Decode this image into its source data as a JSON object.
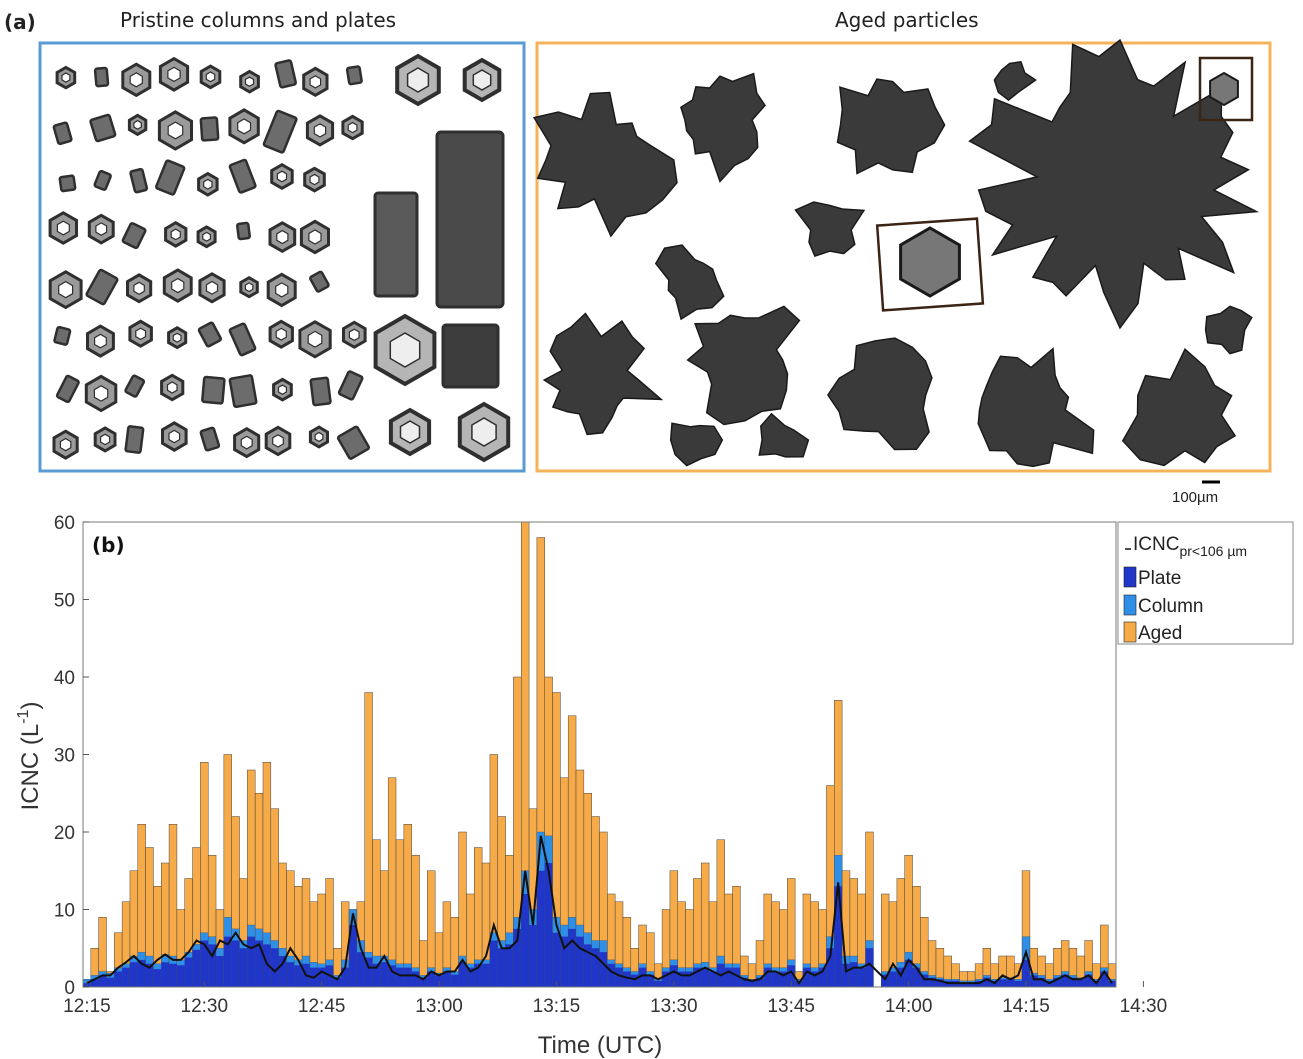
{
  "panel_a": {
    "label": "(a)",
    "pristine_title": "Pristine columns and plates",
    "aged_title": "Aged particles",
    "scale_bar_label": "100µm",
    "colors": {
      "pristine_frame": "#5b9bd5",
      "aged_frame": "#f4b35b",
      "highlight_frame": "#3c2415",
      "particle": "#2f2f2f"
    }
  },
  "chart_data": {
    "type": "bar",
    "stacked": true,
    "panel_label": "(b)",
    "xlabel": "Time (UTC)",
    "ylabel": "ICNC (L",
    "ylabel_superscript": "-1",
    "ylabel_close": ")",
    "ylim": [
      0,
      60
    ],
    "yticks": [
      0,
      10,
      20,
      30,
      40,
      50,
      60
    ],
    "xticks": [
      "12:15",
      "12:30",
      "12:45",
      "13:00",
      "13:15",
      "13:30",
      "13:45",
      "14:00",
      "14:15",
      "14:30"
    ],
    "x_start_minutes": 12.25,
    "x_end_minutes": 14.6,
    "bin_minutes": 1,
    "grid": false,
    "legend_position": "outside-top-right",
    "legend": {
      "line_label": "ICNC",
      "line_label_subscript": "pr<106 µm",
      "plate_label": "Plate",
      "column_label": "Column",
      "aged_label": "Aged"
    },
    "colors": {
      "Plate": "#1f36c8",
      "Column": "#2f8fe6",
      "Aged": "#f7ab48",
      "line": "#111111"
    },
    "total": [
      1,
      5,
      9,
      2,
      7,
      11,
      15,
      21,
      18,
      13,
      16,
      21,
      10,
      14,
      18,
      29,
      17,
      10,
      30,
      22,
      14,
      28,
      25,
      29,
      23,
      16,
      15,
      13,
      14,
      11,
      12,
      14,
      5,
      11,
      10,
      11,
      38,
      19,
      15,
      27,
      19,
      21,
      17,
      6,
      15,
      7,
      11,
      9,
      20,
      12,
      18,
      16,
      30,
      22,
      17,
      40,
      60,
      23,
      58,
      40,
      38,
      27,
      35,
      28,
      25,
      22,
      20,
      12,
      11,
      9,
      5,
      8,
      7,
      3,
      10,
      15,
      11,
      10,
      14,
      16,
      11,
      19,
      12,
      13,
      4,
      3,
      6,
      12,
      11,
      10,
      14,
      2,
      12,
      11,
      10,
      26,
      37,
      15,
      14,
      12,
      20,
      null,
      12,
      11,
      14,
      17,
      13,
      9,
      6,
      5,
      4,
      3,
      2,
      2,
      3,
      5,
      3,
      4,
      4,
      3,
      15,
      5,
      4,
      3,
      5,
      6,
      5,
      4,
      6,
      3,
      8,
      3
    ],
    "column": [
      1,
      1.5,
      2,
      1.8,
      2.5,
      3,
      4,
      4.5,
      4,
      3,
      4.2,
      4,
      3.5,
      4.5,
      5.5,
      7,
      6.5,
      5,
      9,
      7.5,
      6,
      8,
      7.5,
      7,
      6,
      5,
      4,
      3.5,
      4,
      3.2,
      3,
      3.5,
      1.5,
      3.5,
      10,
      6,
      4.5,
      4,
      4,
      3.5,
      3,
      3,
      2.5,
      1.5,
      2.5,
      1.8,
      2.5,
      2,
      4,
      3,
      3.5,
      3.5,
      7,
      6,
      7,
      9,
      15,
      10,
      20,
      19.5,
      9,
      8,
      9,
      8,
      7,
      6,
      6,
      3.5,
      3,
      2.5,
      2,
      3,
      2,
      1,
      2.5,
      3.5,
      2.5,
      2.5,
      3,
      3.2,
      2.5,
      4,
      3,
      3,
      1.5,
      1,
      1.5,
      3,
      2.5,
      2.5,
      3.5,
      1,
      3,
      2.5,
      3,
      6.5,
      17,
      4,
      4,
      3,
      6,
      null,
      2,
      2.5,
      3.2,
      4.5,
      3,
      2,
      1.5,
      1.2,
      1,
      1,
      0.8,
      0.8,
      1,
      1.5,
      1,
      1.2,
      1.2,
      1,
      6.5,
      1.8,
      1.5,
      1,
      1.5,
      2,
      1.5,
      1.2,
      2,
      1,
      2.5,
      1
    ],
    "plate": [
      0.5,
      1,
      1.5,
      1.2,
      2,
      2.5,
      3.2,
      3.5,
      3,
      2.3,
      3.2,
      3,
      2.8,
      3.8,
      4.8,
      6,
      5.5,
      4,
      6.5,
      6,
      5,
      6.5,
      6,
      5.5,
      5,
      4,
      3.2,
      2.8,
      3,
      2.5,
      2.5,
      2.8,
      1.2,
      2.5,
      8,
      4.5,
      3.8,
      3,
      3.2,
      2.8,
      2.5,
      2.5,
      2,
      1.2,
      2,
      1.5,
      2,
      1.6,
      3.2,
      2.5,
      3,
      3,
      6,
      5,
      5.5,
      7.5,
      12,
      8,
      15,
      16,
      7,
      6.5,
      7.5,
      6.5,
      5.5,
      5,
      4.5,
      3,
      2.5,
      2,
      1.6,
      2.5,
      1.6,
      0.8,
      2,
      2.8,
      2,
      2,
      2.5,
      2.5,
      2,
      3,
      2.5,
      2.5,
      1.2,
      0.8,
      1.2,
      2.5,
      2,
      2,
      2.8,
      0.8,
      2.5,
      2,
      2.5,
      5,
      13,
      3,
      3.2,
      2.5,
      5,
      null,
      1.6,
      2,
      2.5,
      3.5,
      2.5,
      1.6,
      1.2,
      1,
      0.8,
      0.8,
      0.6,
      0.6,
      0.8,
      1.2,
      0.8,
      1,
      1,
      0.8,
      3.5,
      1.5,
      1.2,
      0.8,
      1.2,
      1.6,
      1.2,
      1,
      1.6,
      0.8,
      2,
      0.8
    ],
    "line": [
      0.5,
      1,
      1.5,
      1.5,
      2.5,
      3.2,
      4,
      3,
      2.5,
      3.5,
      4.2,
      3.5,
      3.5,
      4.5,
      6,
      5.5,
      4,
      6,
      5.5,
      7,
      5.5,
      5,
      5.5,
      3,
      2,
      3,
      5,
      3.5,
      1.5,
      1.2,
      2,
      1.5,
      1,
      2.5,
      9.5,
      5,
      2.5,
      2.5,
      4,
      2,
      1.5,
      1.5,
      1.5,
      1,
      2,
      1.5,
      2,
      2,
      3.5,
      2,
      2.5,
      4,
      8,
      5,
      5,
      6,
      15,
      8,
      19.5,
      15,
      8,
      5,
      6,
      5,
      4.5,
      4,
      3,
      2,
      1.5,
      1.2,
      1,
      1.5,
      1.5,
      1,
      1.5,
      2,
      1.5,
      1.5,
      2,
      2.5,
      2,
      1.5,
      2,
      1.5,
      1,
      0.8,
      1,
      2,
      2,
      1.5,
      2,
      0.5,
      2,
      1.5,
      2,
      4,
      13.5,
      2,
      2.5,
      2.5,
      3,
      null,
      1,
      3,
      1.5,
      3.5,
      2.5,
      1,
      1,
      0.8,
      0.5,
      0.5,
      0.5,
      0.5,
      0.5,
      1,
      0.5,
      1.5,
      1,
      1.5,
      4.5,
      1,
      1,
      0.5,
      1,
      1.5,
      1,
      1,
      1.5,
      0.5,
      2,
      0.5
    ]
  }
}
